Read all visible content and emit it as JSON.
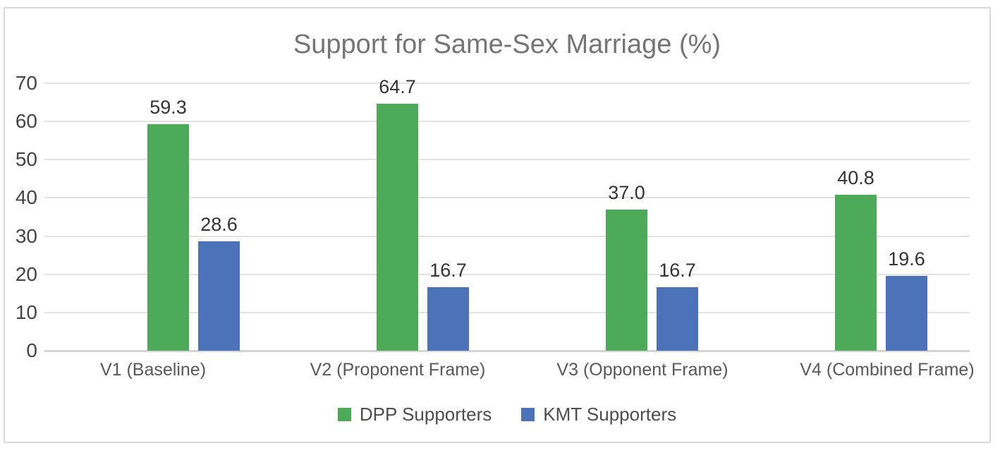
{
  "title": "Support for Same-Sex Marriage (%)",
  "chart_data": {
    "type": "bar",
    "title": "Support for Same-Sex Marriage (%)",
    "categories": [
      "V1 (Baseline)",
      "V2 (Proponent Frame)",
      "V3 (Opponent Frame)",
      "V4 (Combined Frame)"
    ],
    "series": [
      {
        "name": "DPP Supporters",
        "color": "#4caa58",
        "values": [
          59.3,
          64.7,
          37.0,
          40.8
        ]
      },
      {
        "name": "KMT Supporters",
        "color": "#4c72ba",
        "values": [
          28.6,
          16.7,
          16.7,
          19.6
        ]
      }
    ],
    "ylim": [
      0,
      70
    ],
    "yticks": [
      0,
      10,
      20,
      30,
      40,
      50,
      60,
      70
    ],
    "grid": true,
    "legend_position": "bottom",
    "value_label_decimals": 1,
    "xlabel": "",
    "ylabel": ""
  }
}
